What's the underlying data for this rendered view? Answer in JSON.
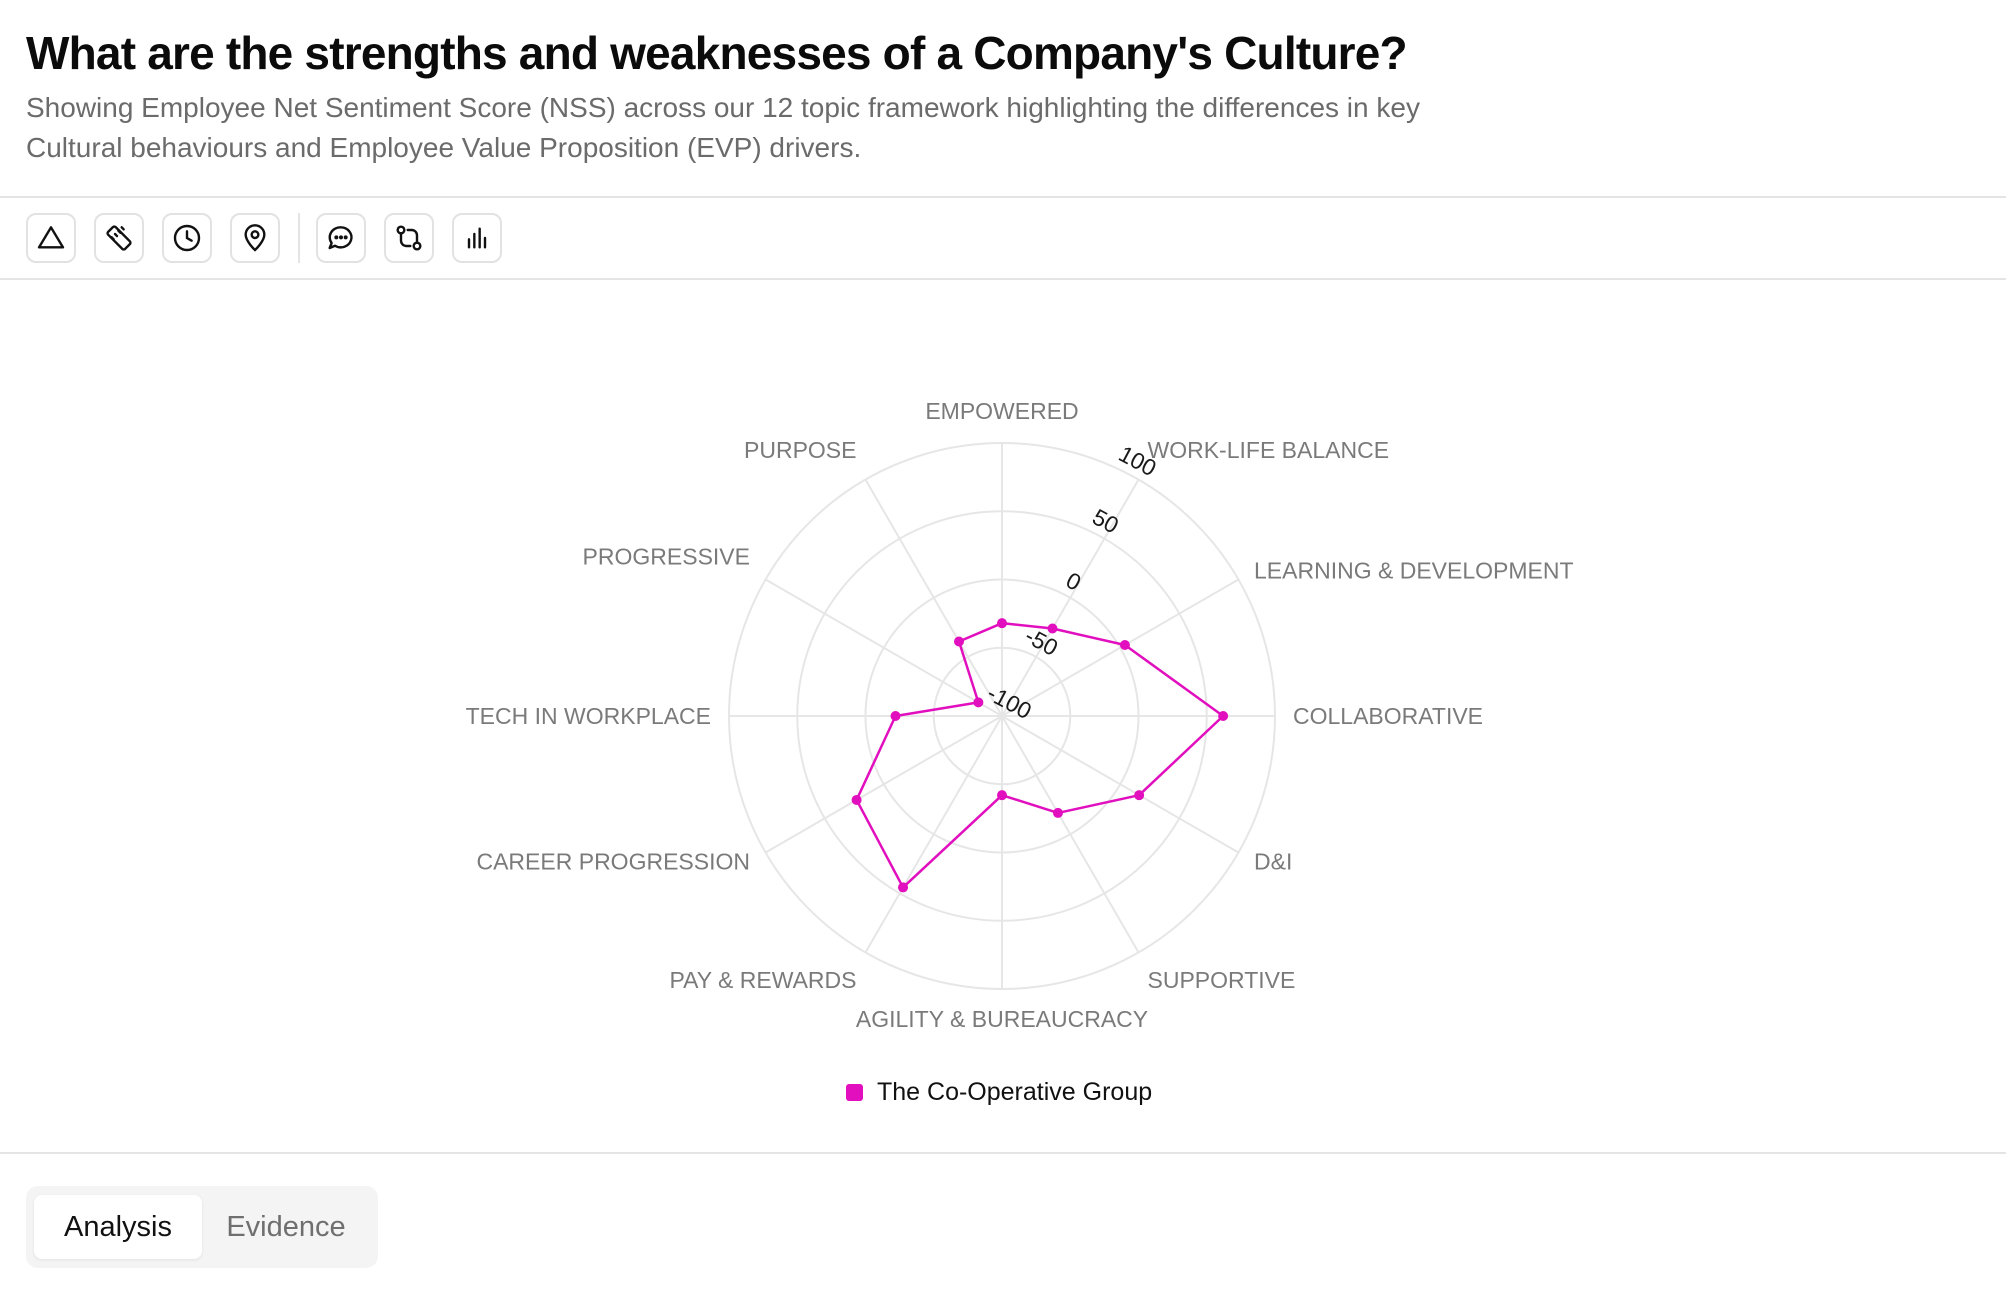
{
  "header": {
    "title": "What are the strengths and weaknesses of a Company's Culture?",
    "subtitle": "Showing Employee Net Sentiment Score (NSS) across our 12 topic framework highlighting the differences in key Cultural behaviours and Employee Value Proposition (EVP) drivers."
  },
  "toolbar": {
    "icons": [
      "triangle-icon",
      "ruler-icon",
      "clock-icon",
      "map-pin-icon",
      "message-icon",
      "git-compare-icon",
      "bar-chart-icon"
    ]
  },
  "chart_data": {
    "type": "radar",
    "categories": [
      "EMPOWERED",
      "WORK-LIFE BALANCE",
      "LEARNING & DEVELOPMENT",
      "COLLABORATIVE",
      "D&I",
      "SUPPORTIVE",
      "AGILITY & BUREAUCRACY",
      "PAY & REWARDS",
      "CAREER PROGRESSION",
      "TECH IN WORKPLACE",
      "PROGRESSIVE",
      "PURPOSE"
    ],
    "series": [
      {
        "name": "The Co-Operative Group",
        "values": [
          -32,
          -26,
          4,
          62,
          16,
          -18,
          -42,
          45,
          23,
          -22,
          -80,
          -37
        ]
      }
    ],
    "rlim": [
      -100,
      100
    ],
    "ticks": [
      "-100",
      "-50",
      "0",
      "50",
      "100"
    ],
    "grid": true,
    "legend": "bottom",
    "color": "#e10fbe"
  },
  "tabs": [
    {
      "label": "Analysis",
      "active": true
    },
    {
      "label": "Evidence",
      "active": false
    }
  ]
}
